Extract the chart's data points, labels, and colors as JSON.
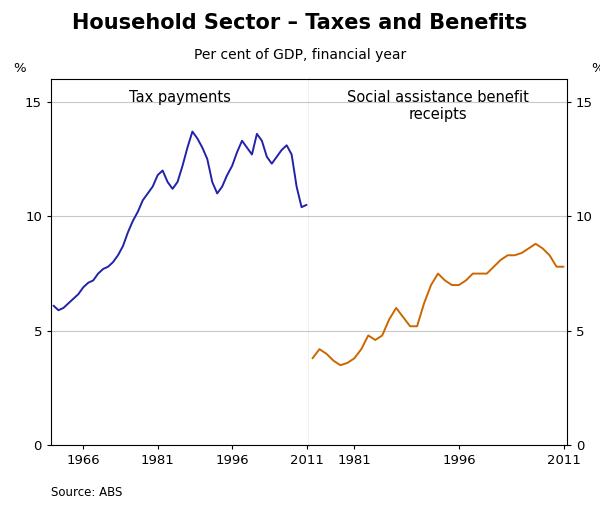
{
  "title": "Household Sector – Taxes and Benefits",
  "subtitle": "Per cent of GDP, financial year",
  "source": "Source: ABS",
  "left_label": "Tax payments",
  "right_label": "Social assistance benefit\nreceipts",
  "ylim": [
    0,
    16
  ],
  "yticks": [
    0,
    5,
    10,
    15
  ],
  "left_color": "#2222aa",
  "right_color": "#cc6600",
  "left_xticks": [
    1966,
    1981,
    1996,
    2011
  ],
  "right_xticks": [
    1981,
    1996,
    2011
  ],
  "tax_data": {
    "years": [
      1960,
      1961,
      1962,
      1963,
      1964,
      1965,
      1966,
      1967,
      1968,
      1969,
      1970,
      1971,
      1972,
      1973,
      1974,
      1975,
      1976,
      1977,
      1978,
      1979,
      1980,
      1981,
      1982,
      1983,
      1984,
      1985,
      1986,
      1987,
      1988,
      1989,
      1990,
      1991,
      1992,
      1993,
      1994,
      1995,
      1996,
      1997,
      1998,
      1999,
      2000,
      2001,
      2002,
      2003,
      2004,
      2005,
      2006,
      2007,
      2008,
      2009,
      2010,
      2011
    ],
    "values": [
      6.1,
      5.9,
      6.0,
      6.2,
      6.4,
      6.6,
      6.9,
      7.1,
      7.2,
      7.5,
      7.7,
      7.8,
      8.0,
      8.3,
      8.7,
      9.3,
      9.8,
      10.2,
      10.7,
      11.0,
      11.3,
      11.8,
      12.0,
      11.5,
      11.2,
      11.5,
      12.2,
      13.0,
      13.7,
      13.4,
      13.0,
      12.5,
      11.5,
      11.0,
      11.3,
      11.8,
      12.2,
      12.8,
      13.3,
      13.0,
      12.7,
      13.6,
      13.3,
      12.6,
      12.3,
      12.6,
      12.9,
      13.1,
      12.7,
      11.3,
      10.4,
      10.5
    ]
  },
  "benefit_data": {
    "years": [
      1975,
      1976,
      1977,
      1978,
      1979,
      1980,
      1981,
      1982,
      1983,
      1984,
      1985,
      1986,
      1987,
      1988,
      1989,
      1990,
      1991,
      1992,
      1993,
      1994,
      1995,
      1996,
      1997,
      1998,
      1999,
      2000,
      2001,
      2002,
      2003,
      2004,
      2005,
      2006,
      2007,
      2008,
      2009,
      2010,
      2011
    ],
    "values": [
      3.8,
      4.2,
      4.0,
      3.7,
      3.5,
      3.6,
      3.8,
      4.2,
      4.8,
      4.6,
      4.8,
      5.5,
      6.0,
      5.6,
      5.2,
      5.2,
      6.2,
      7.0,
      7.5,
      7.2,
      7.0,
      7.0,
      7.2,
      7.5,
      7.5,
      7.5,
      7.8,
      8.1,
      8.3,
      8.3,
      8.4,
      8.6,
      8.8,
      8.6,
      8.3,
      7.8,
      7.8
    ]
  },
  "left_xlim": [
    1959.5,
    2011.5
  ],
  "right_xlim": [
    1974.5,
    2011.5
  ],
  "background_color": "#ffffff",
  "grid_color": "#c8c8c8",
  "line_width": 1.4,
  "title_fontsize": 15,
  "subtitle_fontsize": 10,
  "label_fontsize": 10.5,
  "tick_fontsize": 9.5
}
